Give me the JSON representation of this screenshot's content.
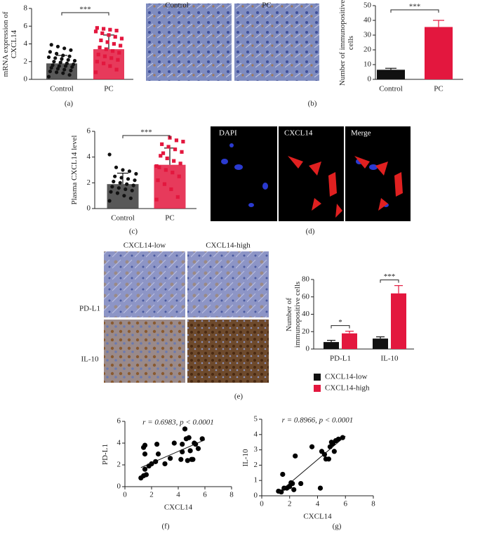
{
  "chart_data": [
    {
      "type": "bar",
      "panel_label": "(a)",
      "ylabel": "mRNA expression of CXCL14",
      "categories": [
        "Control",
        "PC"
      ],
      "values": [
        1.8,
        3.4
      ],
      "errors": [
        0.9,
        1.6
      ],
      "colors": [
        "#3b3b3b",
        "#e3173e"
      ],
      "points": [
        [
          0.3,
          0.5,
          0.7,
          0.8,
          0.9,
          1.0,
          1.1,
          1.2,
          1.3,
          1.4,
          1.5,
          1.5,
          1.6,
          1.7,
          1.8,
          1.9,
          2.0,
          2.1,
          2.2,
          2.3,
          2.4,
          2.5,
          2.6,
          2.7,
          2.9,
          3.1,
          3.3,
          3.5,
          3.7,
          3.9
        ],
        [
          0.8,
          1.1,
          1.5,
          1.8,
          2.0,
          2.2,
          2.4,
          2.6,
          2.8,
          3.0,
          3.2,
          3.4,
          3.6,
          3.8,
          4.0,
          4.2,
          4.4,
          4.6,
          4.8,
          5.0,
          5.2,
          5.4,
          5.5,
          5.6,
          5.7,
          5.8
        ]
      ],
      "ylim": [
        0,
        8
      ],
      "yticks": [
        0,
        2,
        4,
        6,
        8
      ],
      "significance": "***"
    },
    {
      "type": "bar",
      "ylabel": "Number of immunopositive cells",
      "categories": [
        "Control",
        "PC"
      ],
      "values": [
        6.5,
        35.5
      ],
      "errors": [
        1,
        4.5
      ],
      "colors": [
        "#111111",
        "#e3173e"
      ],
      "ylim": [
        0,
        50
      ],
      "yticks": [
        0,
        10,
        20,
        30,
        40,
        50
      ],
      "significance": "***"
    },
    {
      "type": "bar",
      "panel_label": "(c)",
      "ylabel": "Plasma CXCL14 level",
      "categories": [
        "Control",
        "PC"
      ],
      "values": [
        1.9,
        3.4
      ],
      "errors": [
        0.85,
        1.3
      ],
      "colors": [
        "#3b3b3b",
        "#e3173e"
      ],
      "points": [
        [
          0.6,
          0.8,
          1.0,
          1.2,
          1.3,
          1.4,
          1.5,
          1.6,
          1.7,
          1.8,
          1.9,
          2.0,
          2.1,
          2.2,
          2.3,
          2.4,
          2.5,
          2.7,
          2.9,
          3.0,
          3.2,
          4.2
        ],
        [
          0.7,
          0.9,
          1.5,
          1.9,
          2.2,
          2.5,
          2.8,
          3.0,
          3.2,
          3.5,
          3.7,
          3.9,
          4.1,
          4.4,
          4.6,
          4.8,
          5.0,
          5.2,
          5.3,
          5.5,
          4.3,
          3.3
        ]
      ],
      "ylim": [
        0,
        6
      ],
      "yticks": [
        0,
        2,
        4,
        6
      ],
      "significance": "***"
    },
    {
      "type": "grouped_bar",
      "ylabel": "Number of immunopositive cells",
      "categories": [
        "PD-L1",
        "IL-10"
      ],
      "series": [
        {
          "name": "CXCL14-low",
          "color": "#111111",
          "values": [
            8,
            12
          ],
          "errors": [
            2,
            2
          ]
        },
        {
          "name": "CXCL14-high",
          "color": "#e3173e",
          "values": [
            18,
            64
          ],
          "errors": [
            2.5,
            9
          ]
        }
      ],
      "ylim": [
        0,
        80
      ],
      "yticks": [
        0,
        20,
        40,
        60,
        80
      ],
      "significance": [
        "*",
        "***"
      ]
    },
    {
      "type": "scatter",
      "panel_label": "(f)",
      "annotation": "r = 0.6983, p < 0.0001",
      "xlabel": "CXCL14",
      "ylabel": "PD-L1",
      "color": "#000000",
      "x": [
        1.2,
        1.4,
        1.5,
        1.4,
        1.5,
        1.6,
        1.5,
        1.8,
        2.0,
        2.3,
        2.4,
        2.5,
        3.0,
        3.4,
        3.7,
        4.2,
        4.3,
        4.5,
        4.7,
        4.8,
        4.9,
        5.0,
        5.1,
        5.2,
        5.3,
        5.5,
        5.8,
        4.6,
        4.3
      ],
      "y": [
        0.8,
        1.0,
        1.6,
        3.6,
        3.8,
        1.1,
        3.0,
        1.9,
        2.1,
        2.3,
        3.9,
        3.0,
        2.1,
        2.6,
        4.0,
        2.5,
        3.9,
        5.3,
        2.4,
        4.5,
        3.3,
        2.5,
        2.5,
        4.0,
        3.9,
        3.5,
        4.4,
        4.4,
        3.2
      ],
      "fit_line": {
        "x": [
          1.2,
          6
        ],
        "y": [
          1.75,
          4.3
        ]
      },
      "xlim": [
        0,
        8
      ],
      "xticks": [
        0,
        2,
        4,
        6,
        8
      ],
      "ylim": [
        0,
        6
      ],
      "yticks": [
        0,
        2,
        4,
        6
      ]
    },
    {
      "type": "scatter",
      "panel_label": "(g)",
      "annotation": "r = 0.8966, p < 0.0001",
      "xlabel": "CXCL14",
      "ylabel": "IL-10",
      "color": "#000000",
      "x": [
        1.2,
        1.4,
        1.5,
        1.6,
        1.8,
        2.0,
        2.1,
        2.2,
        2.3,
        2.4,
        2.8,
        3.6,
        4.2,
        4.3,
        4.5,
        4.6,
        4.8,
        5.0,
        5.1,
        5.2,
        5.3,
        5.5,
        5.8,
        4.9
      ],
      "y": [
        0.3,
        0.25,
        1.4,
        0.5,
        0.5,
        0.6,
        0.85,
        0.8,
        0.4,
        2.6,
        0.8,
        3.2,
        0.5,
        2.9,
        2.7,
        2.4,
        2.4,
        3.5,
        3.4,
        2.9,
        3.6,
        3.7,
        3.8,
        3.2
      ],
      "fit_line": {
        "x": [
          1.2,
          6
        ],
        "y": [
          0.2,
          3.9
        ]
      },
      "xlim": [
        0,
        8
      ],
      "xticks": [
        0,
        2,
        4,
        6,
        8
      ],
      "ylim": [
        0,
        5
      ],
      "yticks": [
        0,
        1,
        2,
        3,
        4,
        5
      ]
    }
  ],
  "images": [
    {
      "panel_label": "(b)",
      "titles": [
        "Control",
        "PC"
      ]
    },
    {
      "panel_label": "(d)",
      "titles": [
        "DAPI",
        "CXCL14",
        "Merge"
      ]
    },
    {
      "panel_label": "(e)",
      "columns": [
        "CXCL14-low",
        "CXCL14-high"
      ],
      "rows": [
        "PD-L1",
        "IL-10"
      ]
    }
  ]
}
